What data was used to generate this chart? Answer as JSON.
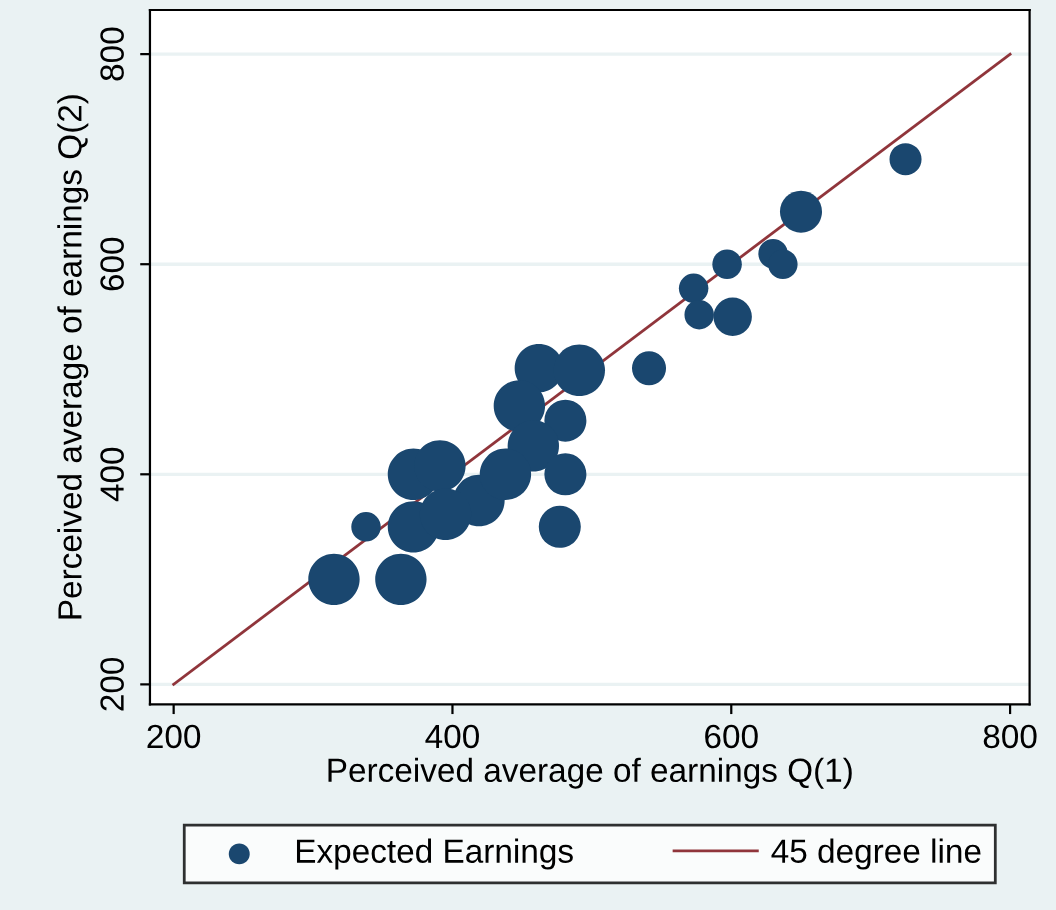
{
  "chart_data": {
    "type": "bubble",
    "xlabel": "Perceived average of earnings Q(1)",
    "ylabel": "Perceived average of earnings Q(2)",
    "xlim": [
      183,
      814
    ],
    "ylim": [
      181,
      842
    ],
    "xticks": [
      200,
      400,
      600,
      800
    ],
    "yticks": [
      200,
      400,
      600,
      800
    ],
    "grid": "y",
    "legend": "bottom",
    "series": [
      {
        "name": "Expected Earnings",
        "color": "#1a476f",
        "x": [
          315,
          363,
          338,
          725,
          650,
          630,
          637,
          597,
          573,
          577,
          601,
          541,
          462,
          491,
          481,
          448,
          458,
          481,
          477,
          372,
          391,
          419,
          438,
          372,
          395
        ],
        "values": [
          300,
          300,
          350,
          700,
          650,
          610,
          600,
          600,
          577,
          552,
          550,
          501,
          501,
          499,
          451,
          465,
          427,
          400,
          350,
          400,
          408,
          375,
          400,
          350,
          362
        ],
        "sizes": [
          1,
          1,
          0.33,
          0.39,
          0.67,
          0.33,
          0.33,
          0.33,
          0.33,
          0.33,
          0.56,
          0.44,
          0.89,
          1,
          0.67,
          1,
          1,
          0.67,
          0.67,
          1,
          1,
          1,
          1,
          1,
          1
        ]
      },
      {
        "name": "45 degree line",
        "type": "line",
        "color": "#90353b",
        "x": [
          200,
          800
        ],
        "values": [
          200,
          800
        ]
      }
    ]
  }
}
